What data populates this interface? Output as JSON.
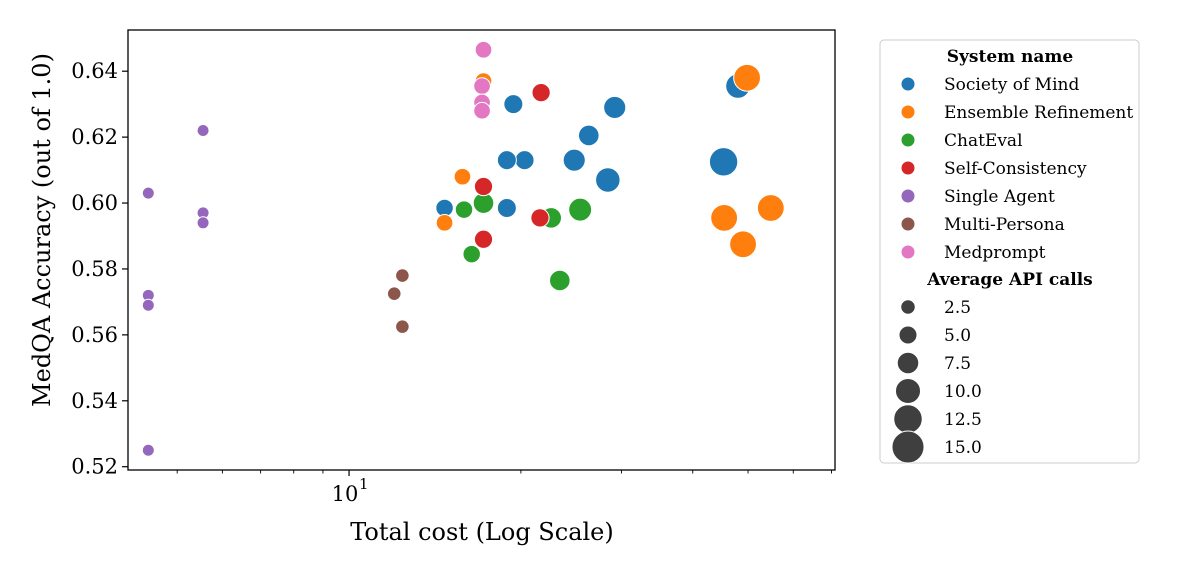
{
  "chart_data": {
    "type": "scatter",
    "title": "",
    "xlabel": "Total cost (Log Scale)",
    "ylabel": "MedQA Accuracy (out of 1.0)",
    "x_scale": "log",
    "xlim": [
      4.1,
      71
    ],
    "ylim": [
      0.519,
      0.6525
    ],
    "x_ticks": [
      {
        "value": 10,
        "label": "10",
        "exponent": "1"
      }
    ],
    "y_ticks": [
      {
        "value": 0.52,
        "label": "0.52"
      },
      {
        "value": 0.54,
        "label": "0.54"
      },
      {
        "value": 0.56,
        "label": "0.56"
      },
      {
        "value": 0.58,
        "label": "0.58"
      },
      {
        "value": 0.6,
        "label": "0.60"
      },
      {
        "value": 0.62,
        "label": "0.62"
      },
      {
        "value": 0.64,
        "label": "0.64"
      }
    ],
    "grid": false,
    "hue_legend_title": "System name",
    "size_legend_title": "Average API calls",
    "legend_position": "outside-right",
    "series": [
      {
        "name": "Society of Mind",
        "color": "#1f77b4",
        "points": [
          {
            "x": 20.3,
            "y": 0.613,
            "calls": 5.5
          },
          {
            "x": 18.9,
            "y": 0.613,
            "calls": 5.5
          },
          {
            "x": 19.4,
            "y": 0.63,
            "calls": 5.5
          },
          {
            "x": 18.9,
            "y": 0.5985,
            "calls": 5.5
          },
          {
            "x": 14.7,
            "y": 0.5985,
            "calls": 4.5
          },
          {
            "x": 24.8,
            "y": 0.613,
            "calls": 7.5
          },
          {
            "x": 26.3,
            "y": 0.6205,
            "calls": 6.5
          },
          {
            "x": 28.4,
            "y": 0.607,
            "calls": 9.0
          },
          {
            "x": 29.2,
            "y": 0.629,
            "calls": 7.5
          },
          {
            "x": 45.3,
            "y": 0.6125,
            "calls": 11.5
          },
          {
            "x": 48.0,
            "y": 0.6355,
            "calls": 9.0
          }
        ]
      },
      {
        "name": "Ensemble Refinement",
        "color": "#ff7f0e",
        "points": [
          {
            "x": 15.8,
            "y": 0.608,
            "calls": 4.0
          },
          {
            "x": 14.7,
            "y": 0.594,
            "calls": 4.0
          },
          {
            "x": 17.2,
            "y": 0.637,
            "calls": 4.0
          },
          {
            "x": 45.4,
            "y": 0.5955,
            "calls": 10.5
          },
          {
            "x": 49.0,
            "y": 0.5875,
            "calls": 10.5
          },
          {
            "x": 49.8,
            "y": 0.638,
            "calls": 10.5
          },
          {
            "x": 54.8,
            "y": 0.5985,
            "calls": 10.5
          }
        ]
      },
      {
        "name": "ChatEval",
        "color": "#2ca02c",
        "points": [
          {
            "x": 15.9,
            "y": 0.598,
            "calls": 4.5
          },
          {
            "x": 16.4,
            "y": 0.5845,
            "calls": 4.5
          },
          {
            "x": 17.2,
            "y": 0.6,
            "calls": 6.5
          },
          {
            "x": 22.6,
            "y": 0.5955,
            "calls": 6.5
          },
          {
            "x": 23.4,
            "y": 0.5765,
            "calls": 6.5
          },
          {
            "x": 25.4,
            "y": 0.598,
            "calls": 8.0
          }
        ]
      },
      {
        "name": "Self-Consistency",
        "color": "#d62728",
        "points": [
          {
            "x": 17.2,
            "y": 0.605,
            "calls": 5.0
          },
          {
            "x": 17.2,
            "y": 0.589,
            "calls": 5.0
          },
          {
            "x": 21.7,
            "y": 0.6335,
            "calls": 5.0
          },
          {
            "x": 21.6,
            "y": 0.5955,
            "calls": 5.0
          }
        ]
      },
      {
        "name": "Single Agent",
        "color": "#9467bd",
        "points": [
          {
            "x": 4.45,
            "y": 0.603,
            "calls": 1.0
          },
          {
            "x": 4.45,
            "y": 0.572,
            "calls": 1.0
          },
          {
            "x": 4.45,
            "y": 0.569,
            "calls": 1.0
          },
          {
            "x": 4.45,
            "y": 0.525,
            "calls": 1.0
          },
          {
            "x": 5.55,
            "y": 0.622,
            "calls": 1.0
          },
          {
            "x": 5.55,
            "y": 0.597,
            "calls": 1.0
          },
          {
            "x": 5.55,
            "y": 0.594,
            "calls": 1.0
          }
        ]
      },
      {
        "name": "Multi-Persona",
        "color": "#8c564b",
        "points": [
          {
            "x": 12.0,
            "y": 0.5725,
            "calls": 2.0
          },
          {
            "x": 12.4,
            "y": 0.578,
            "calls": 2.0
          },
          {
            "x": 12.4,
            "y": 0.5625,
            "calls": 2.0
          }
        ]
      },
      {
        "name": "Medprompt",
        "color": "#e377c2",
        "points": [
          {
            "x": 17.2,
            "y": 0.6465,
            "calls": 4.0
          },
          {
            "x": 17.1,
            "y": 0.6355,
            "calls": 4.0
          },
          {
            "x": 17.1,
            "y": 0.6305,
            "calls": 4.0
          },
          {
            "x": 17.1,
            "y": 0.628,
            "calls": 4.0
          }
        ]
      }
    ],
    "size_legend": [
      {
        "value": 2.5,
        "label": "2.5"
      },
      {
        "value": 5.0,
        "label": "5.0"
      },
      {
        "value": 7.5,
        "label": "7.5"
      },
      {
        "value": 10.0,
        "label": "10.0"
      },
      {
        "value": 12.5,
        "label": "12.5"
      },
      {
        "value": 15.0,
        "label": "15.0"
      }
    ]
  }
}
